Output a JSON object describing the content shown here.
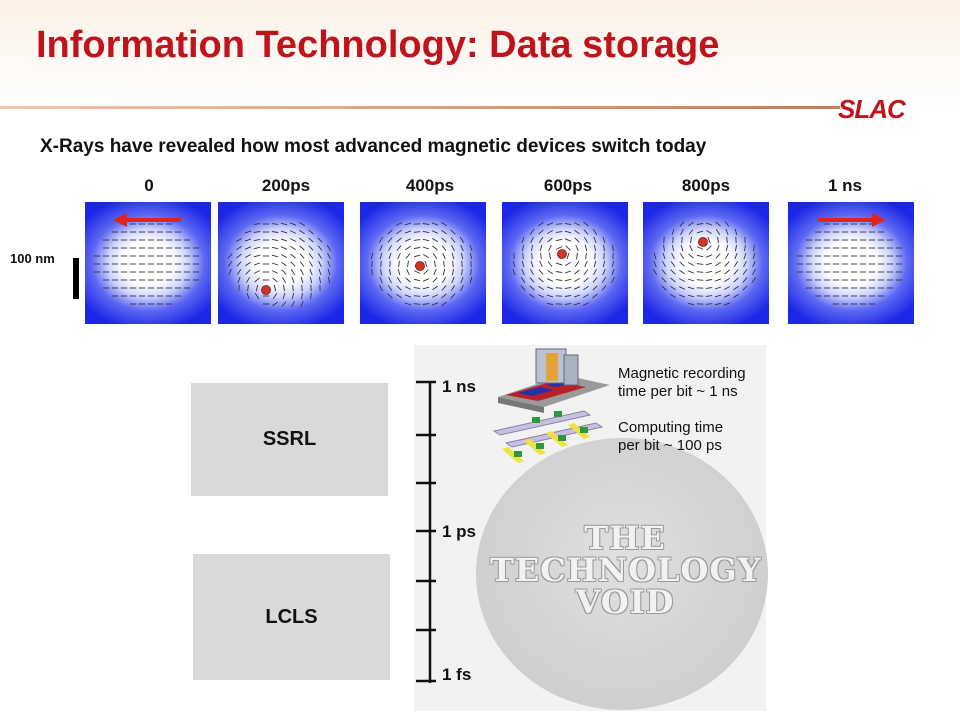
{
  "title": "Information Technology: Data storage",
  "logo": "SLAC",
  "subtitle": "X-Rays have revealed how most advanced magnetic devices switch today",
  "time_labels": [
    "0",
    "200ps",
    "400ps",
    "600ps",
    "800ps",
    "1 ns"
  ],
  "scale_label": "100 nm",
  "sources": [
    {
      "label": "SSRL"
    },
    {
      "label": "LCLS"
    }
  ],
  "timeline": {
    "labels": [
      "1 ns",
      "1 ps",
      "1 fs"
    ],
    "notes": {
      "recording_line1": "Magnetic recording",
      "recording_line2": "time per bit  ~ 1 ns",
      "computing_line1": "Computing time",
      "computing_line2": "per bit  ~ 100 ps"
    },
    "void_lines": [
      "THE",
      "TECHNOLOGY",
      "VOID"
    ]
  },
  "colors": {
    "title": "#c0141c",
    "frame_blue": "#1b26e6",
    "arrow_red": "#e0241c",
    "vortex_dot": "#d0372b"
  }
}
